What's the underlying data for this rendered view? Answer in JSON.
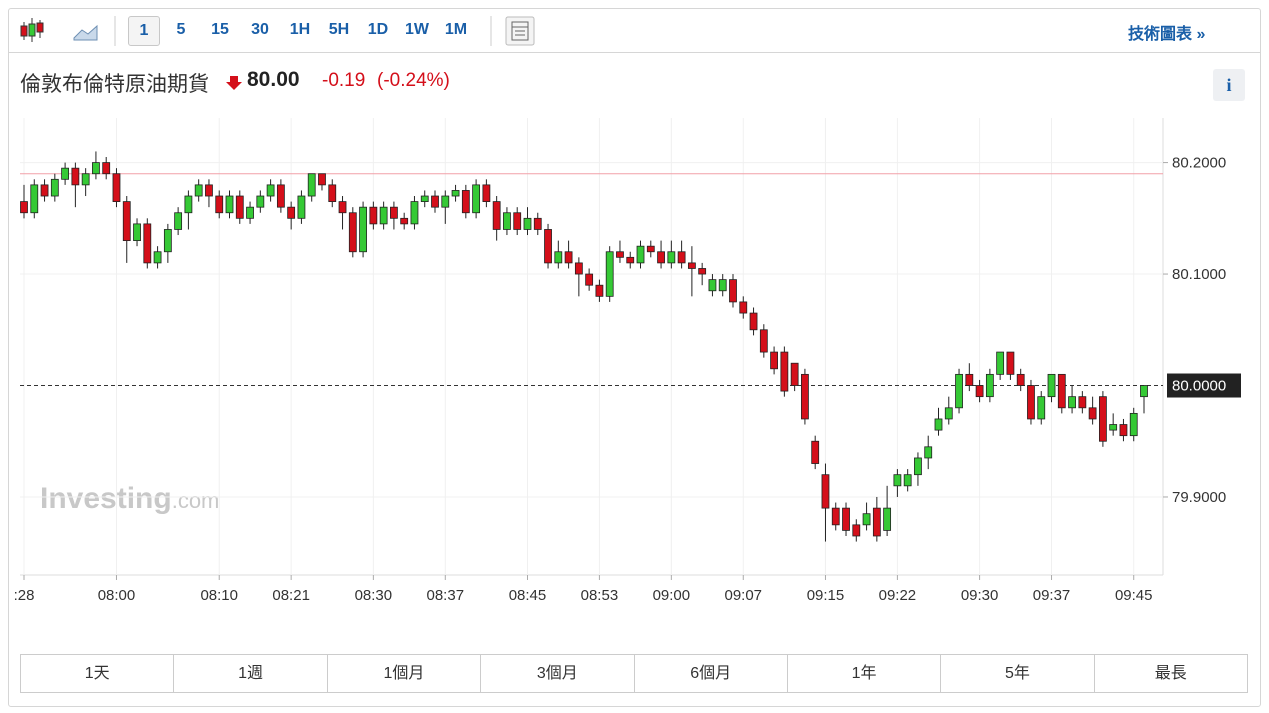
{
  "toolbar": {
    "intervals": [
      "1",
      "5",
      "15",
      "30",
      "1H",
      "5H",
      "1D",
      "1W",
      "1M"
    ],
    "link": "技術圖表 »"
  },
  "header": {
    "name": "倫敦布倫特原油期貨",
    "price": "80.00",
    "change": "-0.19",
    "change_pct": "(-0.24%)",
    "info": "i"
  },
  "chart_data": {
    "type": "candlestick",
    "watermark": [
      "Investing",
      ".com"
    ],
    "categories": [
      ":28",
      null,
      null,
      null,
      null,
      null,
      null,
      null,
      null,
      "08:00",
      null,
      null,
      null,
      null,
      null,
      null,
      null,
      null,
      null,
      "08:10",
      null,
      null,
      null,
      null,
      null,
      null,
      "08:21",
      null,
      null,
      null,
      null,
      null,
      null,
      null,
      "08:30",
      null,
      null,
      null,
      null,
      null,
      null,
      "08:37",
      null,
      null,
      null,
      null,
      null,
      null,
      null,
      "08:45",
      null,
      null,
      null,
      null,
      null,
      null,
      "08:53",
      null,
      null,
      null,
      null,
      null,
      null,
      "09:00",
      null,
      null,
      null,
      null,
      null,
      null,
      "09:07",
      null,
      null,
      null,
      null,
      null,
      null,
      null,
      "09:15",
      null,
      null,
      null,
      null,
      null,
      null,
      "09:22",
      null,
      null,
      null,
      null,
      null,
      null,
      null,
      "09:30",
      null,
      null,
      null,
      null,
      null,
      null,
      "09:37",
      null,
      null,
      null,
      null,
      null,
      null,
      null,
      "09:45",
      null
    ],
    "open": [
      80.165,
      80.155,
      80.18,
      80.17,
      80.185,
      80.195,
      80.18,
      80.19,
      80.2,
      80.19,
      80.165,
      80.13,
      80.145,
      80.11,
      80.12,
      80.14,
      80.155,
      80.17,
      80.18,
      80.17,
      80.155,
      80.17,
      80.15,
      80.16,
      80.17,
      80.18,
      80.16,
      80.15,
      80.17,
      80.19,
      80.18,
      80.165,
      80.155,
      80.12,
      80.16,
      80.145,
      80.16,
      80.15,
      80.145,
      80.165,
      80.17,
      80.16,
      80.17,
      80.175,
      80.155,
      80.18,
      80.165,
      80.14,
      80.155,
      80.14,
      80.15,
      80.14,
      80.11,
      80.12,
      80.11,
      80.1,
      80.09,
      80.08,
      80.12,
      80.115,
      80.11,
      80.125,
      80.12,
      80.11,
      80.12,
      80.11,
      80.105,
      80.085,
      80.085,
      80.095,
      80.075,
      80.065,
      80.05,
      80.03,
      80.03,
      80.02,
      80.01,
      79.95,
      79.92,
      79.89,
      79.89,
      79.875,
      79.875,
      79.89,
      79.87,
      79.91,
      79.91,
      79.92,
      79.935,
      79.96,
      79.97,
      79.98,
      80.01,
      80.0,
      79.99,
      80.01,
      80.03,
      80.01,
      80.0,
      79.97,
      79.99,
      80.01,
      79.98,
      79.99,
      79.98,
      79.99,
      79.96,
      79.965,
      79.955,
      79.99
    ],
    "high": [
      80.18,
      80.185,
      80.185,
      80.19,
      80.2,
      80.2,
      80.195,
      80.21,
      80.205,
      80.195,
      80.17,
      80.15,
      80.15,
      80.125,
      80.145,
      80.16,
      80.175,
      80.185,
      80.185,
      80.175,
      80.175,
      80.175,
      80.165,
      80.175,
      80.185,
      80.185,
      80.165,
      80.175,
      80.19,
      80.19,
      80.185,
      80.17,
      80.16,
      80.165,
      80.165,
      80.165,
      80.165,
      80.155,
      80.17,
      80.175,
      80.175,
      80.175,
      80.18,
      80.18,
      80.185,
      80.185,
      80.17,
      80.16,
      80.16,
      80.16,
      80.155,
      80.145,
      80.13,
      80.13,
      80.115,
      80.105,
      80.095,
      80.125,
      80.13,
      80.12,
      80.13,
      80.13,
      80.13,
      80.13,
      80.13,
      80.125,
      80.11,
      80.1,
      80.1,
      80.1,
      80.08,
      80.07,
      80.055,
      80.035,
      80.035,
      80.02,
      80.015,
      79.955,
      79.93,
      79.895,
      79.895,
      79.88,
      79.895,
      79.9,
      79.91,
      79.925,
      79.925,
      79.94,
      79.955,
      79.98,
      79.99,
      80.015,
      80.02,
      80.005,
      80.015,
      80.03,
      80.03,
      80.015,
      80.005,
      79.995,
      80.01,
      80.01,
      80.0,
      79.995,
      79.99,
      79.995,
      79.975,
      79.97,
      79.98,
      80.0
    ],
    "low": [
      80.15,
      80.15,
      80.165,
      80.165,
      80.18,
      80.16,
      80.17,
      80.185,
      80.185,
      80.16,
      80.11,
      80.125,
      80.105,
      80.105,
      80.11,
      80.135,
      80.14,
      80.165,
      80.16,
      80.15,
      80.15,
      80.145,
      80.145,
      80.155,
      80.165,
      80.155,
      80.14,
      80.145,
      80.165,
      80.175,
      80.16,
      80.14,
      80.115,
      80.115,
      80.14,
      80.14,
      80.14,
      80.14,
      80.14,
      80.16,
      80.155,
      80.145,
      80.165,
      80.15,
      80.15,
      80.16,
      80.13,
      80.135,
      80.135,
      80.135,
      80.135,
      80.105,
      80.105,
      80.105,
      80.08,
      80.085,
      80.075,
      80.075,
      80.11,
      80.105,
      80.105,
      80.115,
      80.105,
      80.105,
      80.105,
      80.08,
      80.09,
      80.08,
      80.08,
      80.07,
      80.06,
      80.045,
      80.025,
      80.01,
      79.99,
      79.995,
      79.965,
      79.925,
      79.86,
      79.87,
      79.865,
      79.86,
      79.87,
      79.86,
      79.865,
      79.9,
      79.905,
      79.91,
      79.925,
      79.955,
      79.965,
      79.975,
      79.995,
      79.985,
      79.985,
      80.005,
      80.005,
      79.995,
      79.965,
      79.965,
      79.985,
      79.975,
      79.975,
      79.975,
      79.965,
      79.945,
      79.955,
      79.95,
      79.95,
      79.975
    ],
    "close": [
      80.155,
      80.18,
      80.17,
      80.185,
      80.195,
      80.18,
      80.19,
      80.2,
      80.19,
      80.165,
      80.13,
      80.145,
      80.11,
      80.12,
      80.14,
      80.155,
      80.17,
      80.18,
      80.17,
      80.155,
      80.17,
      80.15,
      80.16,
      80.17,
      80.18,
      80.16,
      80.15,
      80.17,
      80.19,
      80.18,
      80.165,
      80.155,
      80.12,
      80.16,
      80.145,
      80.16,
      80.15,
      80.145,
      80.165,
      80.17,
      80.16,
      80.17,
      80.175,
      80.155,
      80.18,
      80.165,
      80.14,
      80.155,
      80.14,
      80.15,
      80.14,
      80.11,
      80.12,
      80.11,
      80.1,
      80.09,
      80.08,
      80.12,
      80.115,
      80.11,
      80.125,
      80.12,
      80.11,
      80.12,
      80.11,
      80.105,
      80.1,
      80.095,
      80.095,
      80.075,
      80.065,
      80.05,
      80.03,
      80.015,
      79.995,
      80.0,
      79.97,
      79.93,
      79.89,
      79.875,
      79.87,
      79.865,
      79.885,
      79.865,
      79.89,
      79.92,
      79.92,
      79.935,
      79.945,
      79.97,
      79.98,
      80.01,
      80.0,
      79.99,
      80.01,
      80.03,
      80.01,
      80.0,
      79.97,
      79.99,
      80.01,
      79.98,
      79.99,
      79.98,
      79.97,
      79.95,
      79.965,
      79.955,
      79.975,
      80.0
    ],
    "up_color": "#35c935",
    "down_color": "#d40f1a",
    "ylim": [
      79.83,
      80.24
    ],
    "yticks": [
      {
        "value": 80.2,
        "label": "80.2000"
      },
      {
        "value": 80.1,
        "label": "80.1000"
      },
      {
        "value": 79.9,
        "label": "79.9000"
      }
    ],
    "current_price": {
      "value": 80.0,
      "label": "80.0000"
    },
    "reference_line": 80.19,
    "grid": true
  },
  "ranges": [
    "1天",
    "1週",
    "1個月",
    "3個月",
    "6個月",
    "1年",
    "5年",
    "最長"
  ]
}
